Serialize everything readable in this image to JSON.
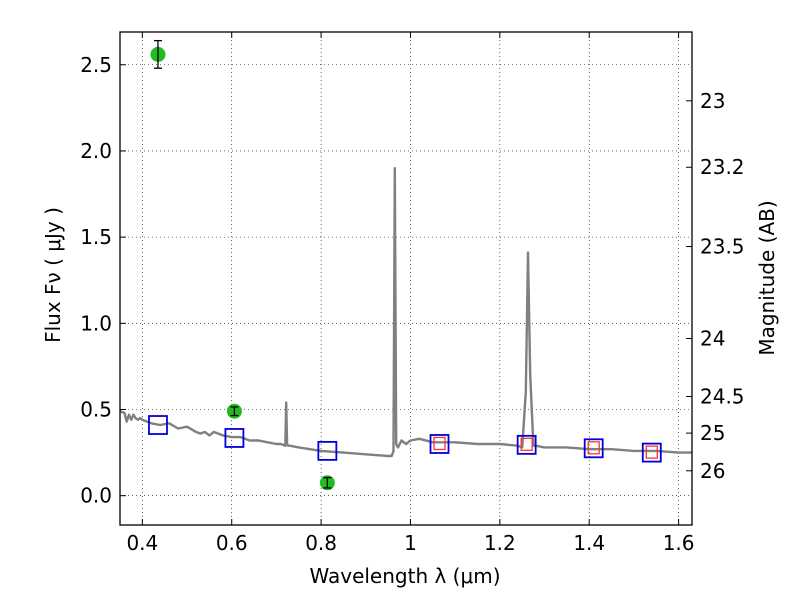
{
  "chart_data": {
    "type": "scatter",
    "xlabel": "Wavelength  λ (μm)",
    "ylabel": "Flux  Fν  ( μJy )",
    "ylabel_right": "Magnitude (AB)",
    "xlim": [
      0.35,
      1.63
    ],
    "ylim": [
      -0.17,
      2.69
    ],
    "grid": true,
    "x_ticks": [
      0.4,
      0.6,
      0.8,
      1.0,
      1.2,
      1.4,
      1.6
    ],
    "x_tick_labels": [
      "0.4",
      "0.6",
      "0.8",
      "1",
      "1.2",
      "1.4",
      "1.6"
    ],
    "y_ticks": [
      0.0,
      0.5,
      1.0,
      1.5,
      2.0,
      2.5
    ],
    "y_tick_labels": [
      "0.0",
      "0.5",
      "1.0",
      "1.5",
      "2.0",
      "2.5"
    ],
    "right_ticks": [
      {
        "label": "23",
        "mag": 23.0
      },
      {
        "label": "23.2",
        "mag": 23.2
      },
      {
        "label": "23.5",
        "mag": 23.5
      },
      {
        "label": "24",
        "mag": 24.0
      },
      {
        "label": "24.5",
        "mag": 24.5
      },
      {
        "label": "25",
        "mag": 25.0
      },
      {
        "label": "26",
        "mag": 26.0
      }
    ],
    "series": [
      {
        "name": "model spectrum",
        "kind": "line",
        "color": "#808080",
        "x": [
          0.35,
          0.36,
          0.365,
          0.37,
          0.375,
          0.38,
          0.385,
          0.39,
          0.395,
          0.4,
          0.42,
          0.44,
          0.46,
          0.48,
          0.5,
          0.52,
          0.53,
          0.54,
          0.55,
          0.56,
          0.58,
          0.6,
          0.62,
          0.64,
          0.66,
          0.68,
          0.7,
          0.71,
          0.72,
          0.722,
          0.724,
          0.726,
          0.73,
          0.75,
          0.8,
          0.85,
          0.9,
          0.95,
          0.958,
          0.962,
          0.965,
          0.968,
          0.972,
          0.98,
          0.99,
          1.0,
          1.02,
          1.05,
          1.1,
          1.15,
          1.2,
          1.24,
          1.25,
          1.258,
          1.263,
          1.268,
          1.275,
          1.28,
          1.3,
          1.35,
          1.4,
          1.45,
          1.5,
          1.55,
          1.6,
          1.63
        ],
        "y": [
          0.49,
          0.48,
          0.43,
          0.47,
          0.44,
          0.47,
          0.45,
          0.44,
          0.45,
          0.44,
          0.42,
          0.41,
          0.42,
          0.39,
          0.4,
          0.37,
          0.36,
          0.37,
          0.35,
          0.37,
          0.35,
          0.34,
          0.34,
          0.32,
          0.32,
          0.31,
          0.3,
          0.3,
          0.29,
          0.54,
          0.3,
          0.29,
          0.29,
          0.28,
          0.26,
          0.25,
          0.24,
          0.23,
          0.23,
          0.26,
          1.9,
          0.3,
          0.28,
          0.32,
          0.3,
          0.32,
          0.33,
          0.31,
          0.31,
          0.3,
          0.3,
          0.29,
          0.28,
          0.6,
          1.41,
          0.7,
          0.29,
          0.29,
          0.28,
          0.28,
          0.27,
          0.27,
          0.26,
          0.26,
          0.25,
          0.25
        ]
      },
      {
        "name": "observed photometry",
        "kind": "points-errorbar",
        "color": "#22bb22",
        "x": [
          0.435,
          0.606,
          0.814
        ],
        "y": [
          2.56,
          0.49,
          0.075
        ],
        "err": [
          0.08,
          0.025,
          0.03
        ]
      },
      {
        "name": "model photometry",
        "kind": "open-square",
        "color": "#0000dd",
        "x": [
          0.435,
          0.606,
          0.814,
          1.065,
          1.26,
          1.41,
          1.54
        ],
        "y": [
          0.41,
          0.335,
          0.26,
          0.3,
          0.295,
          0.275,
          0.25
        ]
      },
      {
        "name": "model photometry (red)",
        "kind": "open-square-small",
        "color": "#ff3333",
        "x": [
          1.065,
          1.26,
          1.41,
          1.54
        ],
        "y": [
          0.3,
          0.295,
          0.275,
          0.25
        ]
      }
    ]
  }
}
